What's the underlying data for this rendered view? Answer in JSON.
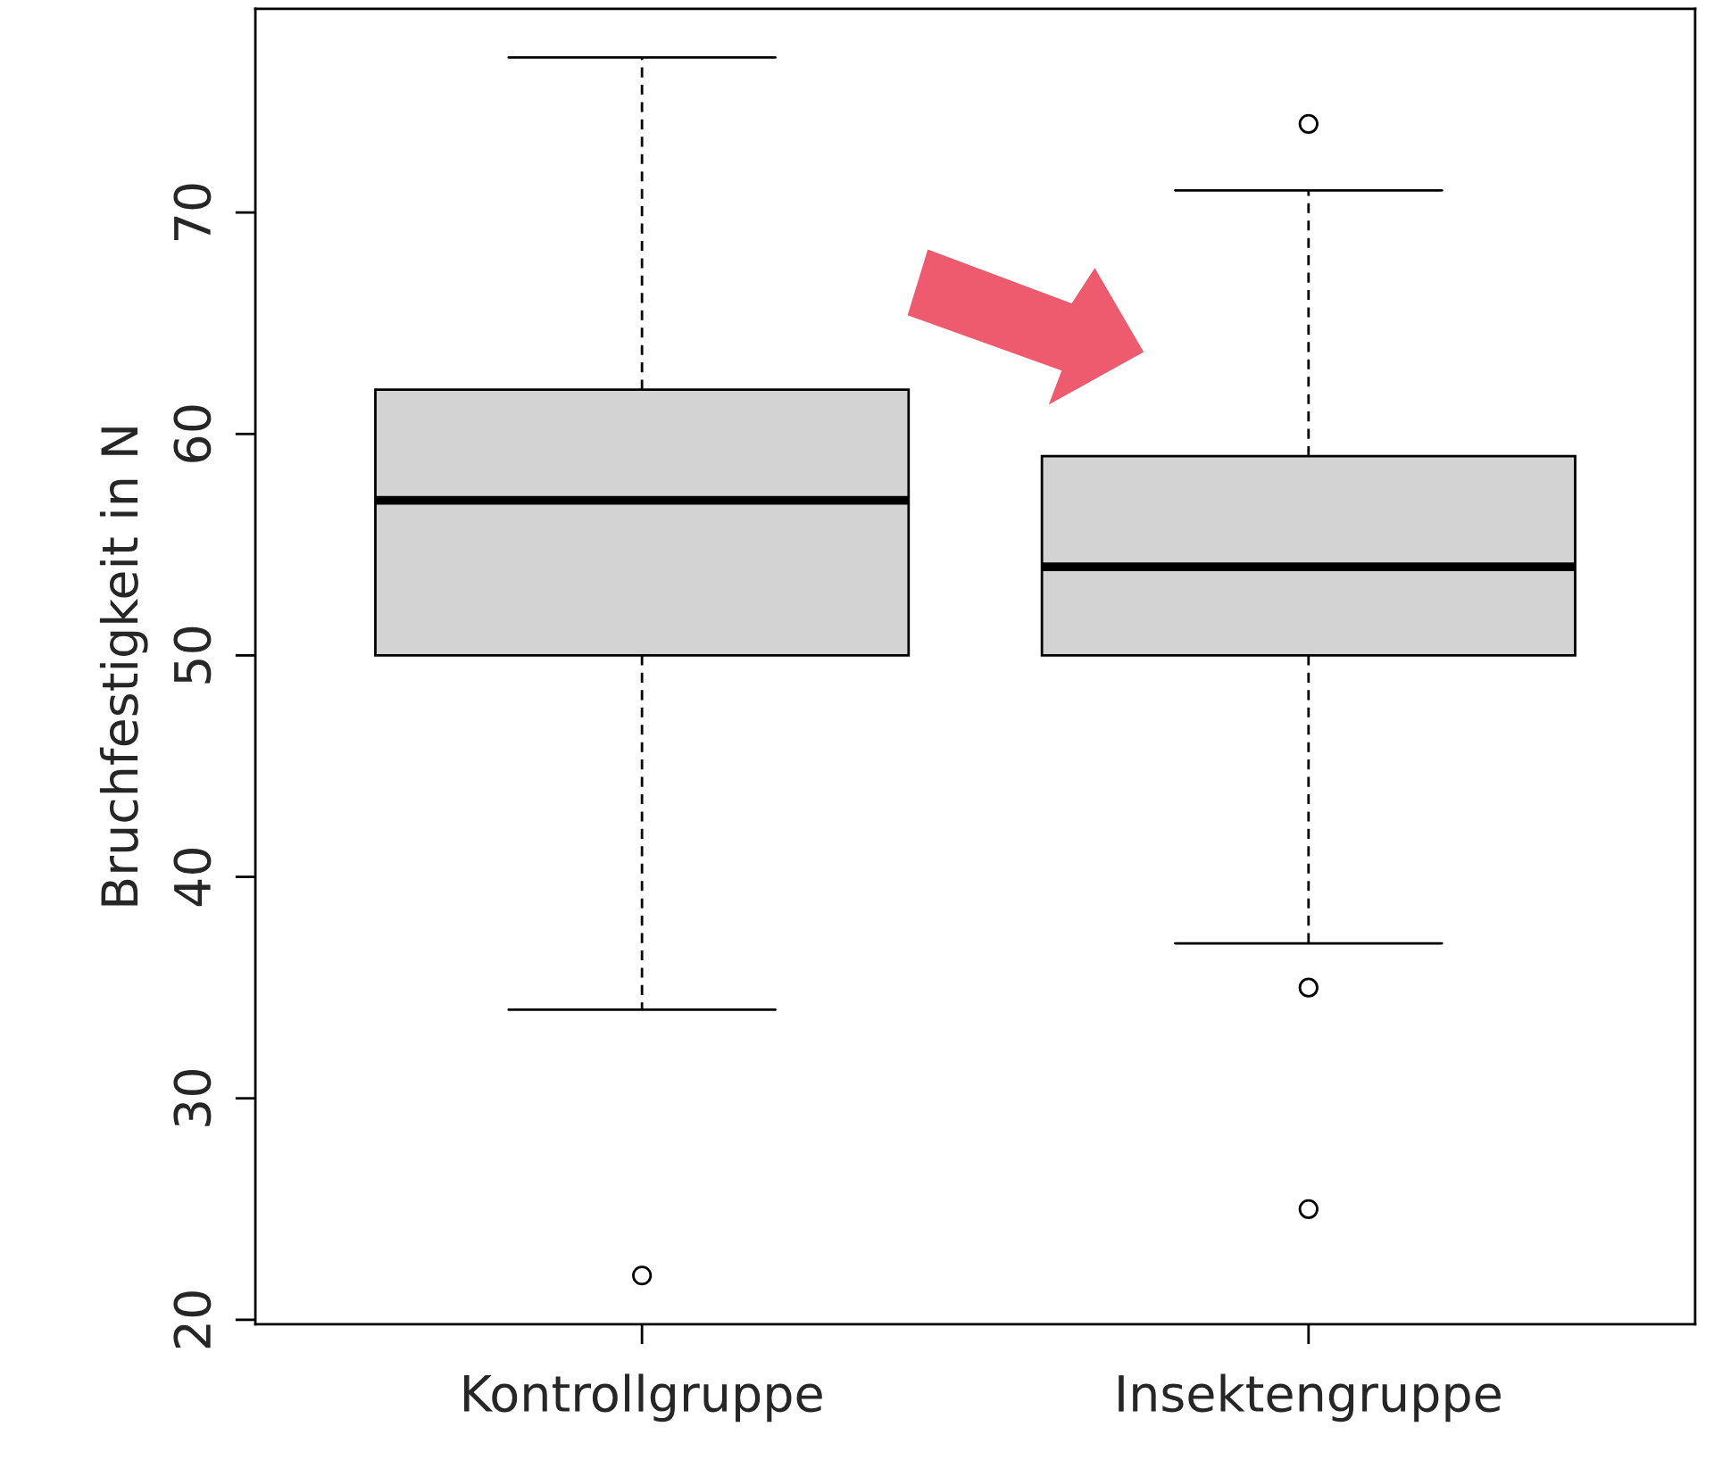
{
  "chart_data": {
    "type": "box",
    "ylabel": "Bruchfestigkeit in N",
    "categories": [
      "Kontrollgruppe",
      "Insektengruppe"
    ],
    "boxes": [
      {
        "low": 34,
        "q1": 50,
        "median": 57,
        "q3": 62,
        "high": 77,
        "outliers": [
          22
        ]
      },
      {
        "low": 37,
        "q1": 50,
        "median": 54,
        "q3": 59,
        "high": 71,
        "outliers": [
          74,
          35,
          25
        ]
      }
    ],
    "color": "#d3d3d3",
    "ylim": [
      19.8,
      79.2
    ],
    "yticks": [
      20,
      30,
      40,
      50,
      60,
      70
    ],
    "grid": false
  }
}
